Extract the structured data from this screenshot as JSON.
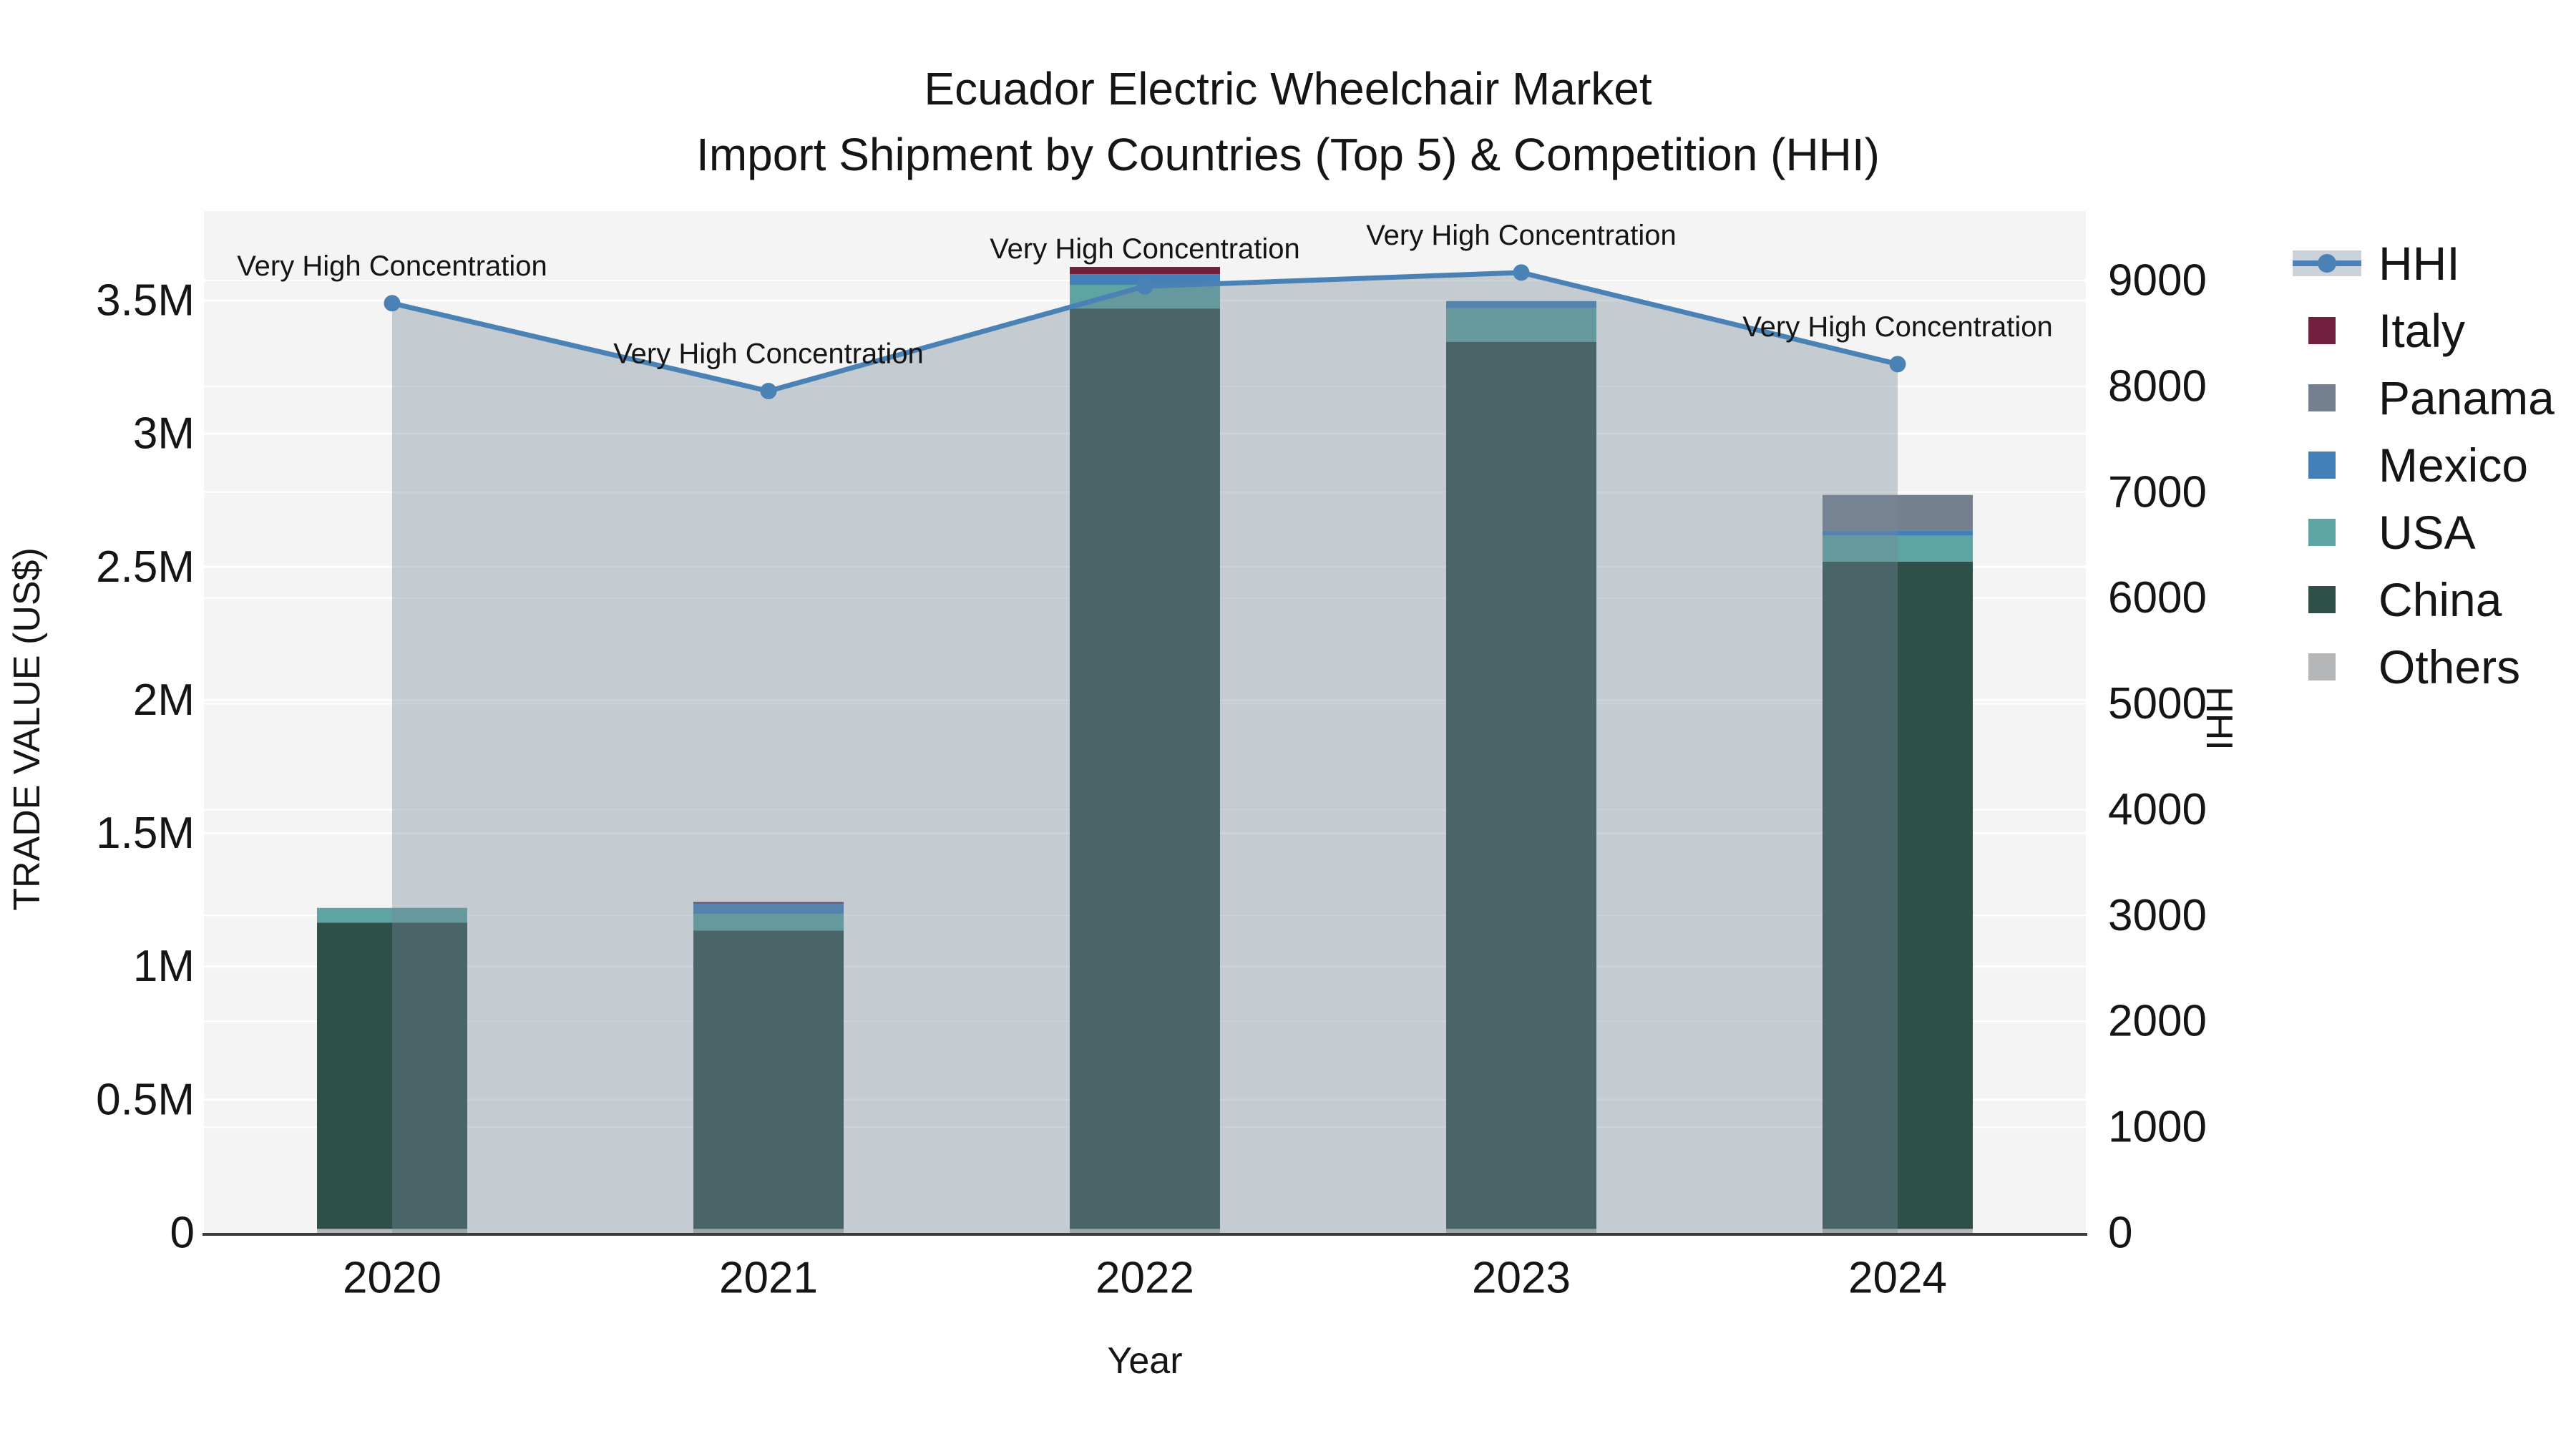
{
  "title": {
    "line1": "Ecuador Electric Wheelchair Market",
    "line2": "Import Shipment by Countries (Top 5) & Competition (HHI)"
  },
  "axes": {
    "x": {
      "label": "Year",
      "categories": [
        "2020",
        "2021",
        "2022",
        "2023",
        "2024"
      ]
    },
    "y_left": {
      "label": "TRADE VALUE (US$)",
      "tick_labels": [
        "0",
        "0.5M",
        "1M",
        "1.5M",
        "2M",
        "2.5M",
        "3M",
        "3.5M"
      ],
      "tick_values": [
        0,
        500000,
        1000000,
        1500000,
        2000000,
        2500000,
        3000000,
        3500000
      ]
    },
    "y_right": {
      "label": "HHI",
      "tick_labels": [
        "0",
        "1000",
        "2000",
        "3000",
        "4000",
        "5000",
        "6000",
        "7000",
        "8000",
        "9000"
      ],
      "tick_values": [
        0,
        1000,
        2000,
        3000,
        4000,
        5000,
        6000,
        7000,
        8000,
        9000
      ]
    }
  },
  "legend": {
    "items": [
      {
        "label": "HHI",
        "type": "line",
        "color": "#4a82b6"
      },
      {
        "label": "Italy",
        "type": "swatch",
        "color": "#701f3d"
      },
      {
        "label": "Panama",
        "type": "swatch",
        "color": "#74808e"
      },
      {
        "label": "Mexico",
        "type": "swatch",
        "color": "#4380ba"
      },
      {
        "label": "USA",
        "type": "swatch",
        "color": "#5da4a2"
      },
      {
        "label": "China",
        "type": "swatch",
        "color": "#2f5049"
      },
      {
        "label": "Others",
        "type": "swatch",
        "color": "#b4b6b7"
      }
    ]
  },
  "chart_data": {
    "type": "bar",
    "subtype": "stacked-bar + line (secondary axis) with shaded area under line",
    "title": "Ecuador Electric Wheelchair Market — Import Shipment by Countries (Top 5) & Competition (HHI)",
    "categories": [
      "2020",
      "2021",
      "2022",
      "2023",
      "2024"
    ],
    "value_unit": "US$",
    "xlabel": "Year",
    "ylabel_left": "TRADE VALUE (US$)",
    "ylabel_right": "HHI",
    "ylim_left": [
      0,
      3840000
    ],
    "ylim_right": [
      0,
      9650
    ],
    "grid": true,
    "plot_bg": "#f4f4f4",
    "grid_color": "#ffffff",
    "series": [
      {
        "name": "Others",
        "color": "#b4b6b7",
        "values": [
          15000,
          15000,
          15000,
          15000,
          15000
        ]
      },
      {
        "name": "China",
        "color": "#2f5049",
        "values": [
          1150000,
          1120000,
          3455000,
          3330000,
          2505000
        ]
      },
      {
        "name": "USA",
        "color": "#5da4a2",
        "values": [
          55000,
          62000,
          89000,
          126000,
          97000
        ]
      },
      {
        "name": "Mexico",
        "color": "#4380ba",
        "values": [
          0,
          40000,
          40000,
          27000,
          19000
        ]
      },
      {
        "name": "Panama",
        "color": "#74808e",
        "values": [
          0,
          0,
          0,
          0,
          134000
        ]
      },
      {
        "name": "Italy",
        "color": "#701f3d",
        "values": [
          0,
          5000,
          27000,
          0,
          0
        ]
      }
    ],
    "bar_totals": [
      1220000,
      1242000,
      3626000,
      3498000,
      2770000
    ],
    "line": {
      "name": "HHI",
      "color": "#4a82b6",
      "area_fill": "rgba(119,136,153,0.38)",
      "values": [
        8785,
        7955,
        8945,
        9075,
        8210
      ]
    },
    "annotations": [
      "Very High Concentration",
      "Very High Concentration",
      "Very High Concentration",
      "Very High Concentration",
      "Very High Concentration"
    ],
    "legend_position": "right"
  }
}
